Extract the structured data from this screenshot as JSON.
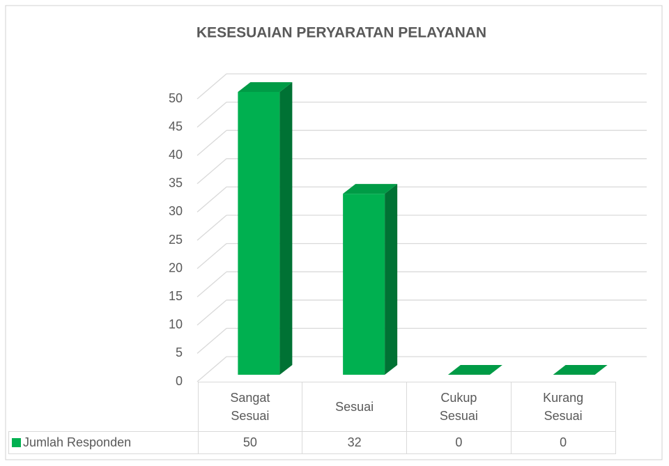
{
  "chart_data": {
    "type": "bar3d",
    "title": "KESESUAIAN PERYARATAN PELAYANAN",
    "categories": [
      "Sangat Sesuai",
      "Sesuai",
      "Cukup Sesuai",
      "Kurang Sesuai"
    ],
    "series": [
      {
        "name": "Jumlah Responden",
        "color": "#00b050",
        "values": [
          50,
          32,
          0,
          0
        ]
      }
    ],
    "ylim": [
      0,
      50
    ],
    "yticks": [
      0,
      5,
      10,
      15,
      20,
      25,
      30,
      35,
      40,
      45,
      50
    ],
    "grid": true,
    "legend": "table"
  }
}
